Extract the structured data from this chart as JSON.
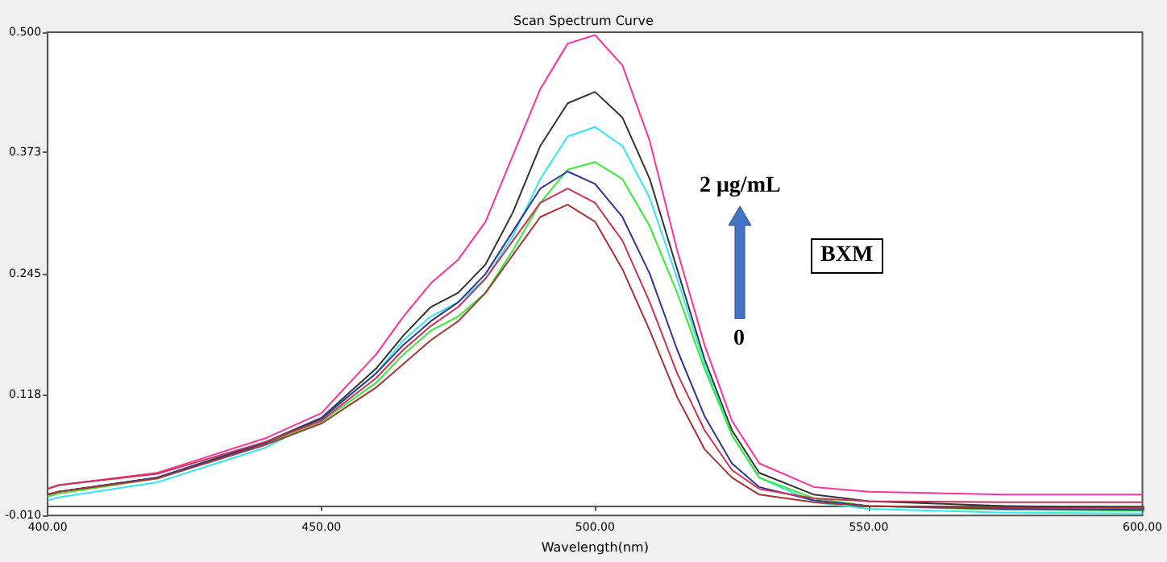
{
  "chart_data": {
    "type": "line",
    "title": "Scan Spectrum Curve",
    "xlabel": "Wavelength(nm)",
    "annotations": [
      "2 μg/mL",
      "BXM",
      "0"
    ],
    "x": [
      400,
      402,
      420,
      440,
      450,
      460,
      465,
      470,
      475,
      480,
      485,
      490,
      495,
      500,
      505,
      510,
      515,
      520,
      525,
      530,
      540,
      550,
      575,
      600
    ],
    "xlim": [
      400,
      600
    ],
    "xticks": [
      {
        "value": 400,
        "label": "400.00"
      },
      {
        "value": 450,
        "label": "450.00"
      },
      {
        "value": 500,
        "label": "500.00"
      },
      {
        "value": 550,
        "label": "550.00"
      },
      {
        "value": 600,
        "label": "600.00"
      }
    ],
    "ylim": [
      -0.01,
      0.5
    ],
    "yticks": [
      {
        "value": -0.01,
        "label": "-0.010"
      },
      {
        "value": 0.118,
        "label": "0.118"
      },
      {
        "value": 0.245,
        "label": "0.245"
      },
      {
        "value": 0.373,
        "label": "0.373"
      },
      {
        "value": 0.5,
        "label": "0.500"
      }
    ],
    "grid": false,
    "marker": "none",
    "series": [
      {
        "color": "#ff3399",
        "values": [
          0.018,
          0.022,
          0.035,
          0.072,
          0.098,
          0.16,
          0.2,
          0.235,
          0.26,
          0.3,
          0.37,
          0.44,
          0.488,
          0.497,
          0.465,
          0.385,
          0.27,
          0.17,
          0.09,
          0.045,
          0.02,
          0.015,
          0.012,
          0.012
        ]
      },
      {
        "color": "#333333",
        "values": [
          0.012,
          0.015,
          0.03,
          0.068,
          0.093,
          0.145,
          0.18,
          0.21,
          0.225,
          0.255,
          0.31,
          0.38,
          0.425,
          0.437,
          0.41,
          0.345,
          0.25,
          0.155,
          0.08,
          0.035,
          0.012,
          0.005,
          0,
          -0.002
        ]
      },
      {
        "color": "#33e6f0",
        "values": [
          0.006,
          0.009,
          0.025,
          0.062,
          0.092,
          0.14,
          0.175,
          0.2,
          0.215,
          0.24,
          0.285,
          0.345,
          0.39,
          0.4,
          0.38,
          0.325,
          0.24,
          0.15,
          0.075,
          0.03,
          0.004,
          -0.003,
          -0.007,
          -0.008
        ]
      },
      {
        "color": "#33ee33",
        "values": [
          0.01,
          0.013,
          0.029,
          0.066,
          0.089,
          0.13,
          0.16,
          0.185,
          0.2,
          0.225,
          0.27,
          0.32,
          0.355,
          0.363,
          0.345,
          0.295,
          0.225,
          0.145,
          0.075,
          0.03,
          0.008,
          0,
          -0.004,
          -0.005
        ]
      },
      {
        "color": "#333399",
        "values": [
          0.012,
          0.015,
          0.03,
          0.067,
          0.092,
          0.14,
          0.17,
          0.195,
          0.215,
          0.245,
          0.29,
          0.335,
          0.353,
          0.34,
          0.305,
          0.245,
          0.165,
          0.095,
          0.045,
          0.02,
          0.006,
          0,
          -0.003,
          -0.004
        ]
      },
      {
        "color": "#cc3355",
        "values": [
          0.018,
          0.022,
          0.034,
          0.068,
          0.09,
          0.135,
          0.165,
          0.19,
          0.21,
          0.24,
          0.28,
          0.32,
          0.335,
          0.32,
          0.28,
          0.215,
          0.14,
          0.08,
          0.038,
          0.018,
          0.008,
          0.005,
          0.004,
          0.004
        ]
      },
      {
        "color": "#aa3333",
        "values": [
          0.012,
          0.015,
          0.029,
          0.065,
          0.087,
          0.125,
          0.15,
          0.175,
          0.195,
          0.225,
          0.265,
          0.305,
          0.318,
          0.3,
          0.25,
          0.185,
          0.115,
          0.06,
          0.03,
          0.012,
          0.004,
          0,
          -0.002,
          -0.002
        ]
      }
    ]
  }
}
